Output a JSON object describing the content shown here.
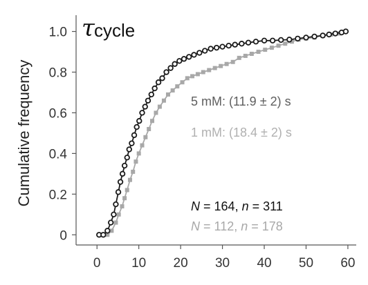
{
  "chart_data": {
    "type": "line",
    "title": "τ",
    "title_subscript": "cycle",
    "xlabel": "",
    "ylabel": "Cumulative frequency",
    "xlim": [
      -5,
      62
    ],
    "ylim": [
      -0.05,
      1.08
    ],
    "x_ticks": [
      0,
      10,
      20,
      30,
      40,
      50,
      60
    ],
    "y_ticks": [
      0,
      0.2,
      0.4,
      0.6,
      0.8,
      1.0
    ],
    "y_tick_labels": [
      "0",
      "0.2",
      "0.4",
      "0.6",
      "0.8",
      "1.0"
    ],
    "grid": false,
    "series": [
      {
        "name": "5 mM: (11.9 ± 2) s",
        "color": "#1a1a1a",
        "marker": "open-circle",
        "points": [
          [
            0.5,
            0
          ],
          [
            1.5,
            0
          ],
          [
            2.5,
            0.02
          ],
          [
            3.3,
            0.06
          ],
          [
            4,
            0.1
          ],
          [
            4.5,
            0.15
          ],
          [
            5.1,
            0.21
          ],
          [
            5.6,
            0.26
          ],
          [
            6.1,
            0.3
          ],
          [
            6.6,
            0.34
          ],
          [
            7.2,
            0.38
          ],
          [
            7.7,
            0.42
          ],
          [
            8.3,
            0.45
          ],
          [
            8.9,
            0.49
          ],
          [
            9.5,
            0.53
          ],
          [
            10.1,
            0.56
          ],
          [
            10.8,
            0.6
          ],
          [
            11.5,
            0.63
          ],
          [
            12.2,
            0.66
          ],
          [
            13,
            0.69
          ],
          [
            13.8,
            0.72
          ],
          [
            14.7,
            0.75
          ],
          [
            15.6,
            0.77
          ],
          [
            16.6,
            0.8
          ],
          [
            17.6,
            0.82
          ],
          [
            18.6,
            0.84
          ],
          [
            19.7,
            0.855
          ],
          [
            20.8,
            0.865
          ],
          [
            22,
            0.875
          ],
          [
            23.2,
            0.885
          ],
          [
            24.5,
            0.895
          ],
          [
            25.8,
            0.905
          ],
          [
            27.2,
            0.915
          ],
          [
            28.6,
            0.92
          ],
          [
            30,
            0.925
          ],
          [
            31.5,
            0.93
          ],
          [
            33,
            0.935
          ],
          [
            34.6,
            0.94
          ],
          [
            36.2,
            0.945
          ],
          [
            38,
            0.95
          ],
          [
            40,
            0.955
          ],
          [
            42,
            0.955
          ],
          [
            44,
            0.958
          ],
          [
            46,
            0.96
          ],
          [
            48,
            0.965
          ],
          [
            50,
            0.97
          ],
          [
            52,
            0.975
          ],
          [
            54,
            0.98
          ],
          [
            55.5,
            0.985
          ],
          [
            57,
            0.99
          ],
          [
            58.5,
            0.995
          ],
          [
            59.5,
            1.0
          ]
        ]
      },
      {
        "name": "1 mM: (18.4 ± 2) s",
        "color": "#a8a8a8",
        "marker": "filled-square",
        "points": [
          [
            1.5,
            0
          ],
          [
            2.5,
            0
          ],
          [
            3.5,
            0.02
          ],
          [
            4.5,
            0.06
          ],
          [
            5.2,
            0.1
          ],
          [
            6,
            0.14
          ],
          [
            6.6,
            0.18
          ],
          [
            7.2,
            0.22
          ],
          [
            7.9,
            0.27
          ],
          [
            8.6,
            0.31
          ],
          [
            9.3,
            0.36
          ],
          [
            10,
            0.4
          ],
          [
            10.8,
            0.44
          ],
          [
            11.6,
            0.48
          ],
          [
            12.4,
            0.52
          ],
          [
            13.2,
            0.56
          ],
          [
            14.1,
            0.6
          ],
          [
            15,
            0.63
          ],
          [
            16,
            0.66
          ],
          [
            17,
            0.69
          ],
          [
            18.1,
            0.71
          ],
          [
            19.2,
            0.73
          ],
          [
            20.4,
            0.75
          ],
          [
            21.6,
            0.77
          ],
          [
            22.8,
            0.78
          ],
          [
            24.1,
            0.79
          ],
          [
            25.4,
            0.8
          ],
          [
            26.8,
            0.81
          ],
          [
            28.2,
            0.82
          ],
          [
            29.6,
            0.83
          ],
          [
            31,
            0.84
          ],
          [
            32.5,
            0.85
          ],
          [
            34,
            0.87
          ],
          [
            35.5,
            0.88
          ],
          [
            37,
            0.89
          ],
          [
            38.6,
            0.9
          ],
          [
            40.2,
            0.91
          ],
          [
            41.8,
            0.92
          ],
          [
            43.4,
            0.93
          ],
          [
            45,
            0.94
          ],
          [
            46.6,
            0.95
          ],
          [
            48.2,
            0.96
          ],
          [
            50,
            0.965
          ],
          [
            52,
            0.97
          ],
          [
            54,
            0.98
          ],
          [
            56,
            0.985
          ],
          [
            58,
            0.99
          ],
          [
            59.5,
            1.0
          ]
        ]
      }
    ],
    "annotations": [
      {
        "id": "legend_5mM",
        "text": "5 mM: (11.9 ± 2) s",
        "color": "#5e5e5e"
      },
      {
        "id": "legend_1mM",
        "text": "1 mM: (18.4 ± 2) s",
        "color": "#b0b0b0"
      }
    ],
    "counts": [
      {
        "N_label": "N",
        "N": "164",
        "n_label": "n",
        "n": "311",
        "color": "#111111"
      },
      {
        "N_label": "N",
        "N": "112",
        "n_label": "n",
        "n": "178",
        "color": "#a8a8a8"
      }
    ]
  }
}
